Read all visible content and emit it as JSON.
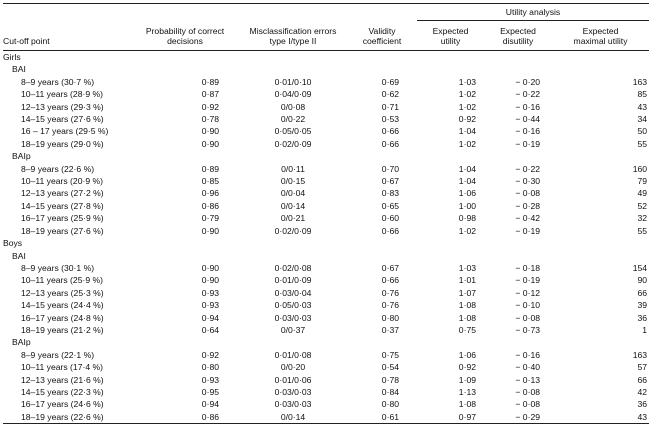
{
  "header": {
    "cutoff": "Cut-off point",
    "probability": [
      "Probability of correct",
      "decisions"
    ],
    "misclassification": [
      "Misclassification errors",
      "type I/type II"
    ],
    "validity": [
      "Validity",
      "coefficient"
    ],
    "utility_analysis": "Utility analysis",
    "expected_utility": [
      "Expected",
      "utility"
    ],
    "expected_disutility": [
      "Expected",
      "disutility"
    ],
    "expected_maximal": [
      "Expected",
      "maximal utility"
    ]
  },
  "sections": [
    {
      "label": "Girls",
      "groups": [
        {
          "label": "BAI",
          "rows": [
            [
              "8–9 years (30·7 %)",
              "0·89",
              "0·01/0·10",
              "0·69",
              "1·03",
              "− 0·20",
              "163"
            ],
            [
              "10–11 years (28·9 %)",
              "0·87",
              "0·04/0·09",
              "0·62",
              "1·02",
              "− 0·22",
              "85"
            ],
            [
              "12–13 years (29·3 %)",
              "0·92",
              "0/0·08",
              "0·71",
              "1·02",
              "− 0·16",
              "43"
            ],
            [
              "14–15 years (27·6 %)",
              "0·78",
              "0/0·22",
              "0·53",
              "0·92",
              "− 0·44",
              "34"
            ],
            [
              "16 – 17 years (29·5 %)",
              "0·90",
              "0·05/0·05",
              "0·66",
              "1·04",
              "− 0·16",
              "50"
            ],
            [
              "18–19 years (29·0 %)",
              "0·90",
              "0·02/0·09",
              "0·66",
              "1·02",
              "− 0·19",
              "55"
            ]
          ]
        },
        {
          "label": "BAIp",
          "rows": [
            [
              "8–9 years (22·6 %)",
              "0·89",
              "0/0·11",
              "0·70",
              "1·04",
              "− 0·22",
              "160"
            ],
            [
              "10–11 years (20·9 %)",
              "0·85",
              "0/0·15",
              "0·67",
              "1·04",
              "− 0·30",
              "79"
            ],
            [
              "12–13 years (27·2 %)",
              "0·96",
              "0/0·04",
              "0·83",
              "1·06",
              "− 0·08",
              "49"
            ],
            [
              "14–15 years (27·8 %)",
              "0·86",
              "0/0·14",
              "0·65",
              "1·00",
              "− 0·28",
              "52"
            ],
            [
              "16–17 years (25·9 %)",
              "0·79",
              "0/0·21",
              "0·60",
              "0·98",
              "− 0·42",
              "32"
            ],
            [
              "18–19 years (27·6 %)",
              "0·90",
              "0·02/0·09",
              "0·66",
              "1·02",
              "− 0·19",
              "55"
            ]
          ]
        }
      ]
    },
    {
      "label": "Boys",
      "groups": [
        {
          "label": "BAI",
          "rows": [
            [
              "8–9 years (30·1 %)",
              "0·90",
              "0·02/0·08",
              "0·67",
              "1·03",
              "− 0·18",
              "154"
            ],
            [
              "10–11 years (25·9 %)",
              "0·90",
              "0·01/0·09",
              "0·66",
              "1·01",
              "− 0·19",
              "90"
            ],
            [
              "12–13 years (25·3 %)",
              "0·93",
              "0·03/0·04",
              "0·76",
              "1·07",
              "− 0·12",
              "66"
            ],
            [
              "14–15 years (24·4 %)",
              "0·93",
              "0·05/0·03",
              "0·76",
              "1·08",
              "− 0·10",
              "39"
            ],
            [
              "16–17 years (24·8 %)",
              "0·94",
              "0·03/0·03",
              "0·80",
              "1·08",
              "− 0·08",
              "36"
            ],
            [
              "18–19 years (21·2 %)",
              "0·64",
              "0/0·37",
              "0·37",
              "0·75",
              "− 0·73",
              "1"
            ]
          ]
        },
        {
          "label": "BAIp",
          "rows": [
            [
              "8–9 years (22·1 %)",
              "0·92",
              "0·01/0·08",
              "0·75",
              "1·06",
              "− 0·16",
              "163"
            ],
            [
              "10–11 years (17·4 %)",
              "0·80",
              "0/0·20",
              "0·54",
              "0·92",
              "− 0·40",
              "57"
            ],
            [
              "12–13 years (21·6 %)",
              "0·93",
              "0·01/0·06",
              "0·78",
              "1·09",
              "− 0·13",
              "66"
            ],
            [
              "14–15 years (22·3 %)",
              "0·95",
              "0·03/0·03",
              "0·84",
              "1·13",
              "− 0·08",
              "42"
            ],
            [
              "16–17 years (24·6 %)",
              "0·94",
              "0·03/0·03",
              "0·80",
              "1·08",
              "− 0·08",
              "36"
            ],
            [
              "18–19 years (22·6 %)",
              "0·86",
              "0/0·14",
              "0·61",
              "0·97",
              "− 0·29",
              "43"
            ]
          ]
        }
      ]
    }
  ]
}
